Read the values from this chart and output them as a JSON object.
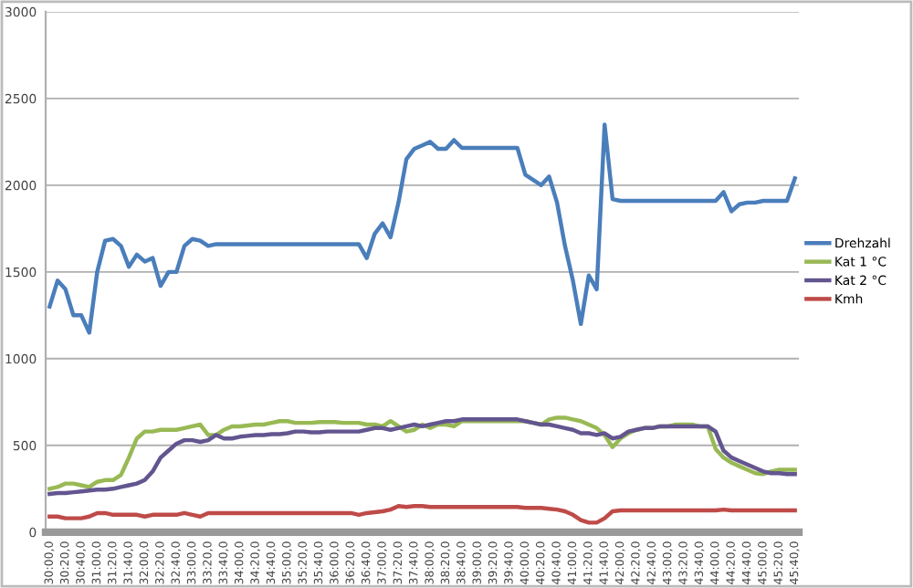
{
  "chart_data": {
    "type": "line",
    "categories": [
      "30:00,0",
      null,
      "30:20,0",
      null,
      "30:40,0",
      null,
      "31:00,0",
      null,
      "31:20,0",
      null,
      "31:40,0",
      null,
      "32:00,0",
      null,
      "32:20,0",
      null,
      "32:40,0",
      null,
      "33:00,0",
      null,
      "33:20,0",
      null,
      "33:40,0",
      null,
      "34:00,0",
      null,
      "34:20,0",
      null,
      "34:40,0",
      null,
      "35:00,0",
      null,
      "35:20,0",
      null,
      "35:40,0",
      null,
      "36:00,0",
      null,
      "36:20,0",
      null,
      "36:40,0",
      null,
      "37:00,0",
      null,
      "37:20,0",
      null,
      "37:40,0",
      null,
      "38:00,0",
      null,
      "38:20,0",
      null,
      "38:40,0",
      null,
      "39:00,0",
      null,
      "39:20,0",
      null,
      "39:40,0",
      null,
      "40:00,0",
      null,
      "40:20,0",
      null,
      "40:40,0",
      null,
      "41:00,0",
      null,
      "41:20,0",
      null,
      "41:40,0",
      null,
      "42:00,0",
      null,
      "42:20,0",
      null,
      "42:40,0",
      null,
      "43:00,0",
      null,
      "43:20,0",
      null,
      "43:40,0",
      null,
      "44:00,0",
      null,
      "44:20,0",
      null,
      "44:40,0",
      null,
      "45:00,0",
      null,
      "45:20,0",
      null,
      "45:40,0"
    ],
    "series": [
      {
        "name": "Drehzahl",
        "color": "#4a7ebb",
        "values": [
          1300,
          1450,
          1400,
          1250,
          1250,
          1150,
          1500,
          1680,
          1690,
          1650,
          1530,
          1600,
          1560,
          1580,
          1420,
          1500,
          1500,
          1650,
          1690,
          1680,
          1650,
          1660,
          1660,
          1660,
          1660,
          1660,
          1660,
          1660,
          1660,
          1660,
          1660,
          1660,
          1660,
          1660,
          1660,
          1660,
          1660,
          1660,
          1660,
          1660,
          1580,
          1720,
          1780,
          1700,
          1900,
          2150,
          2210,
          2230,
          2250,
          2210,
          2210,
          2260,
          2215,
          2215,
          2215,
          2215,
          2215,
          2215,
          2215,
          2215,
          2060,
          2030,
          2000,
          2050,
          1900,
          1650,
          1450,
          1200,
          1480,
          1400,
          2350,
          1920,
          1910,
          1910,
          1910,
          1910,
          1910,
          1910,
          1910,
          1910,
          1910,
          1910,
          1910,
          1910,
          1910,
          1960,
          1850,
          1890,
          1900,
          1900,
          1910,
          1910,
          1910,
          1910,
          2040
        ]
      },
      {
        "name": "Kat 1 °C",
        "color": "#98b954",
        "values": [
          250,
          260,
          280,
          280,
          270,
          260,
          290,
          300,
          300,
          330,
          430,
          540,
          580,
          580,
          590,
          590,
          590,
          600,
          610,
          620,
          560,
          560,
          590,
          610,
          610,
          615,
          620,
          620,
          630,
          640,
          640,
          630,
          630,
          630,
          635,
          635,
          635,
          630,
          630,
          630,
          620,
          620,
          610,
          640,
          610,
          580,
          590,
          620,
          600,
          620,
          620,
          610,
          640,
          640,
          640,
          640,
          640,
          640,
          640,
          640,
          640,
          630,
          620,
          650,
          660,
          660,
          650,
          640,
          620,
          600,
          560,
          490,
          540,
          570,
          590,
          600,
          600,
          610,
          610,
          620,
          620,
          620,
          610,
          610,
          480,
          430,
          400,
          380,
          360,
          340,
          335,
          350,
          360,
          360,
          360
        ]
      },
      {
        "name": "Kat 2 °C",
        "color": "#63558f",
        "values": [
          220,
          225,
          225,
          230,
          235,
          240,
          245,
          245,
          250,
          260,
          270,
          280,
          300,
          350,
          430,
          470,
          510,
          530,
          530,
          520,
          530,
          560,
          540,
          540,
          550,
          555,
          560,
          560,
          565,
          565,
          570,
          580,
          580,
          575,
          575,
          580,
          580,
          580,
          580,
          580,
          590,
          600,
          600,
          590,
          600,
          610,
          620,
          610,
          620,
          630,
          640,
          640,
          650,
          650,
          650,
          650,
          650,
          650,
          650,
          650,
          640,
          630,
          620,
          620,
          610,
          600,
          590,
          570,
          570,
          560,
          570,
          540,
          550,
          580,
          590,
          600,
          600,
          610,
          610,
          610,
          610,
          610,
          610,
          610,
          580,
          470,
          430,
          410,
          390,
          370,
          350,
          340,
          340,
          335,
          335
        ]
      },
      {
        "name": "Kmh",
        "color": "#be4b48",
        "values": [
          90,
          90,
          80,
          80,
          80,
          90,
          110,
          110,
          100,
          100,
          100,
          100,
          90,
          100,
          100,
          100,
          100,
          110,
          100,
          90,
          110,
          110,
          110,
          110,
          110,
          110,
          110,
          110,
          110,
          110,
          110,
          110,
          110,
          110,
          110,
          110,
          110,
          110,
          110,
          100,
          110,
          115,
          120,
          130,
          150,
          145,
          150,
          150,
          145,
          145,
          145,
          145,
          145,
          145,
          145,
          145,
          145,
          145,
          145,
          145,
          140,
          140,
          140,
          135,
          130,
          120,
          100,
          70,
          55,
          55,
          80,
          120,
          125,
          125,
          125,
          125,
          125,
          125,
          125,
          125,
          125,
          125,
          125,
          125,
          125,
          130,
          125,
          125,
          125,
          125,
          125,
          125,
          125,
          125,
          125
        ]
      }
    ],
    "ylim": [
      0,
      3000
    ],
    "yticks": [
      0,
      500,
      1000,
      1500,
      2000,
      2500,
      3000
    ],
    "grid": "y",
    "legend": "right",
    "marker": "none",
    "line_style": "solid"
  }
}
